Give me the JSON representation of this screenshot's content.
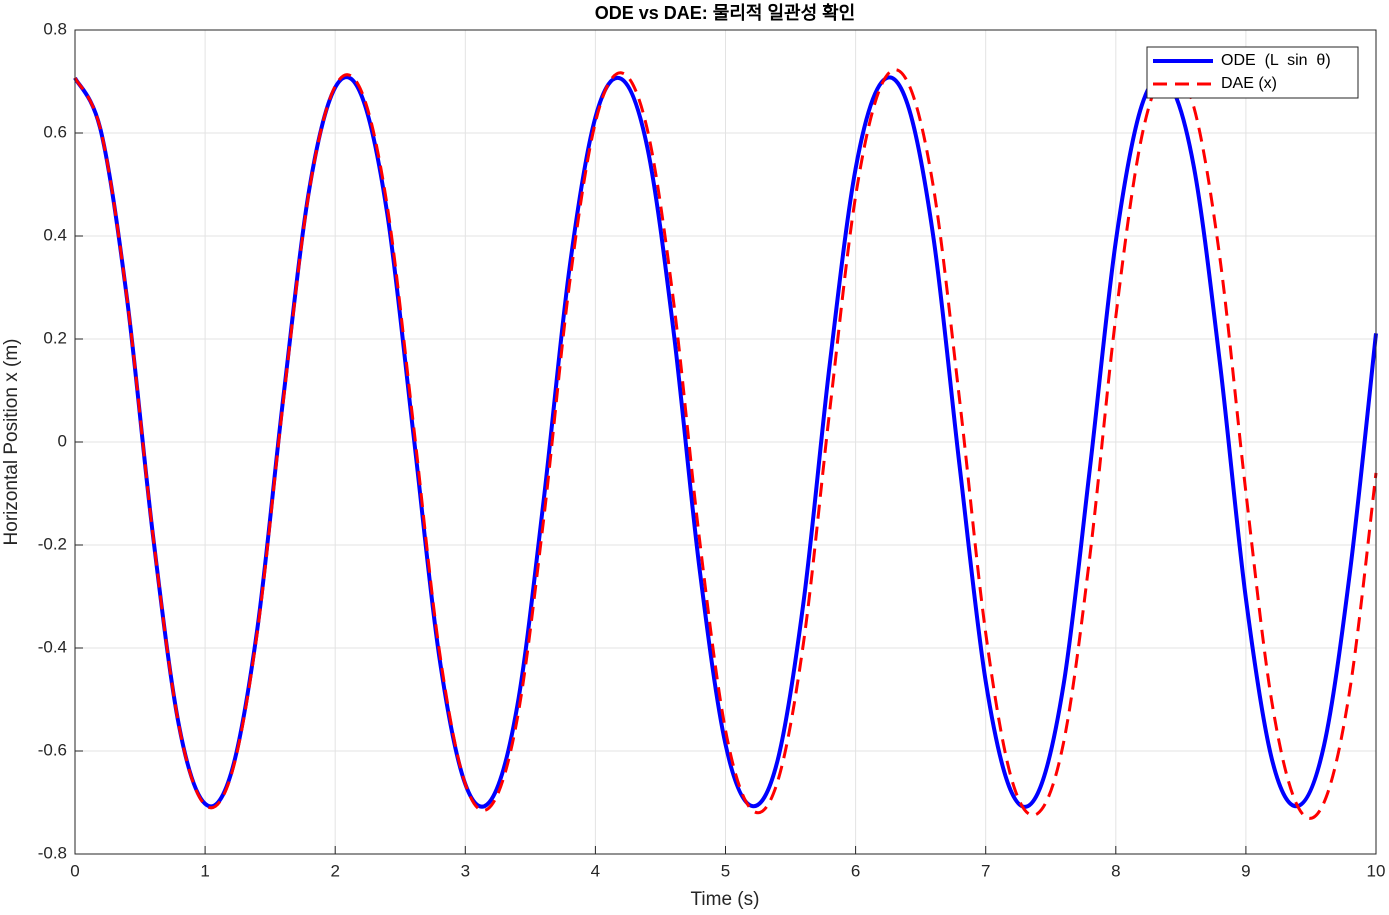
{
  "chart_data": {
    "type": "line",
    "title": "ODE vs DAE: 물리적 일관성 확인",
    "x_label": "Time (s)",
    "y_label": "Horizontal Position x (m)",
    "x": [
      0,
      0.2,
      0.4,
      0.6,
      0.8,
      1,
      1.2,
      1.4,
      1.6,
      1.8,
      2,
      2.2,
      2.4,
      2.6,
      2.8,
      3,
      3.2,
      3.4,
      3.6,
      3.8,
      4,
      4.2,
      4.4,
      4.6,
      4.8,
      5,
      5.2,
      5.4,
      5.6,
      5.8,
      6,
      6.2,
      6.4,
      6.6,
      6.8,
      7,
      7.2,
      7.4,
      7.6,
      7.8,
      8,
      8.2,
      8.4,
      8.6,
      8.8,
      9,
      9.2,
      9.4,
      9.6,
      9.8,
      10
    ],
    "series": [
      {
        "name": "ODE  (L  sin  θ)",
        "color": "#0000ff",
        "line_style": "solid",
        "values": [
          0.7071,
          0.6028,
          0.2778,
          -0.1828,
          -0.5518,
          -0.7025,
          -0.6432,
          -0.3655,
          0.0835,
          0.4899,
          0.6884,
          0.6741,
          0.4435,
          0.0179,
          -0.4169,
          -0.6643,
          -0.6943,
          -0.5122,
          -0.1185,
          0.3355,
          0.6304,
          0.705,
          0.5709,
          0.2167,
          -0.2451,
          -0.5869,
          -0.7066,
          -0.6188,
          -0.3103,
          0.1483,
          0.5307,
          0.6985,
          0.6554,
          0.3939,
          -0.0481,
          -0.4647,
          -0.681,
          -0.6822,
          -0.4689,
          -0.0532,
          0.3895,
          0.6538,
          0.6992,
          0.5343,
          0.1541,
          -0.3042,
          -0.6162,
          -0.7068,
          -0.5897,
          -0.2519,
          0.2109
        ]
      },
      {
        "name": "DAE (x)",
        "color": "#ff0000",
        "line_style": "dashed",
        "values": [
          0.7071,
          0.6032,
          0.2783,
          -0.1822,
          -0.5522,
          -0.7048,
          -0.6472,
          -0.3716,
          0.0769,
          0.4869,
          0.6909,
          0.6819,
          0.4582,
          0.0367,
          -0.4041,
          -0.6639,
          -0.7057,
          -0.5368,
          -0.155,
          0.3054,
          0.6208,
          0.7168,
          0.6059,
          0.2747,
          -0.1883,
          -0.5594,
          -0.7137,
          -0.6598,
          -0.389,
          0.0587,
          0.4772,
          0.694,
          0.6989,
          0.4918,
          0.0802,
          -0.3708,
          -0.6552,
          -0.7212,
          -0.5819,
          -0.2229,
          0.2432,
          0.5936,
          0.725,
          0.6502,
          0.3577,
          -0.0978,
          -0.5056,
          -0.7084,
          -0.7002,
          -0.4797,
          -0.0601
        ]
      }
    ],
    "xlim": [
      0,
      10
    ],
    "xticks": [
      0,
      1,
      2,
      3,
      4,
      5,
      6,
      7,
      8,
      9,
      10
    ],
    "ylim": [
      -0.8,
      0.8
    ],
    "yticks": [
      -0.8,
      -0.6,
      -0.4,
      -0.2,
      0,
      0.2,
      0.4,
      0.6,
      0.8
    ],
    "grid": true,
    "legend_position": "top-right"
  }
}
